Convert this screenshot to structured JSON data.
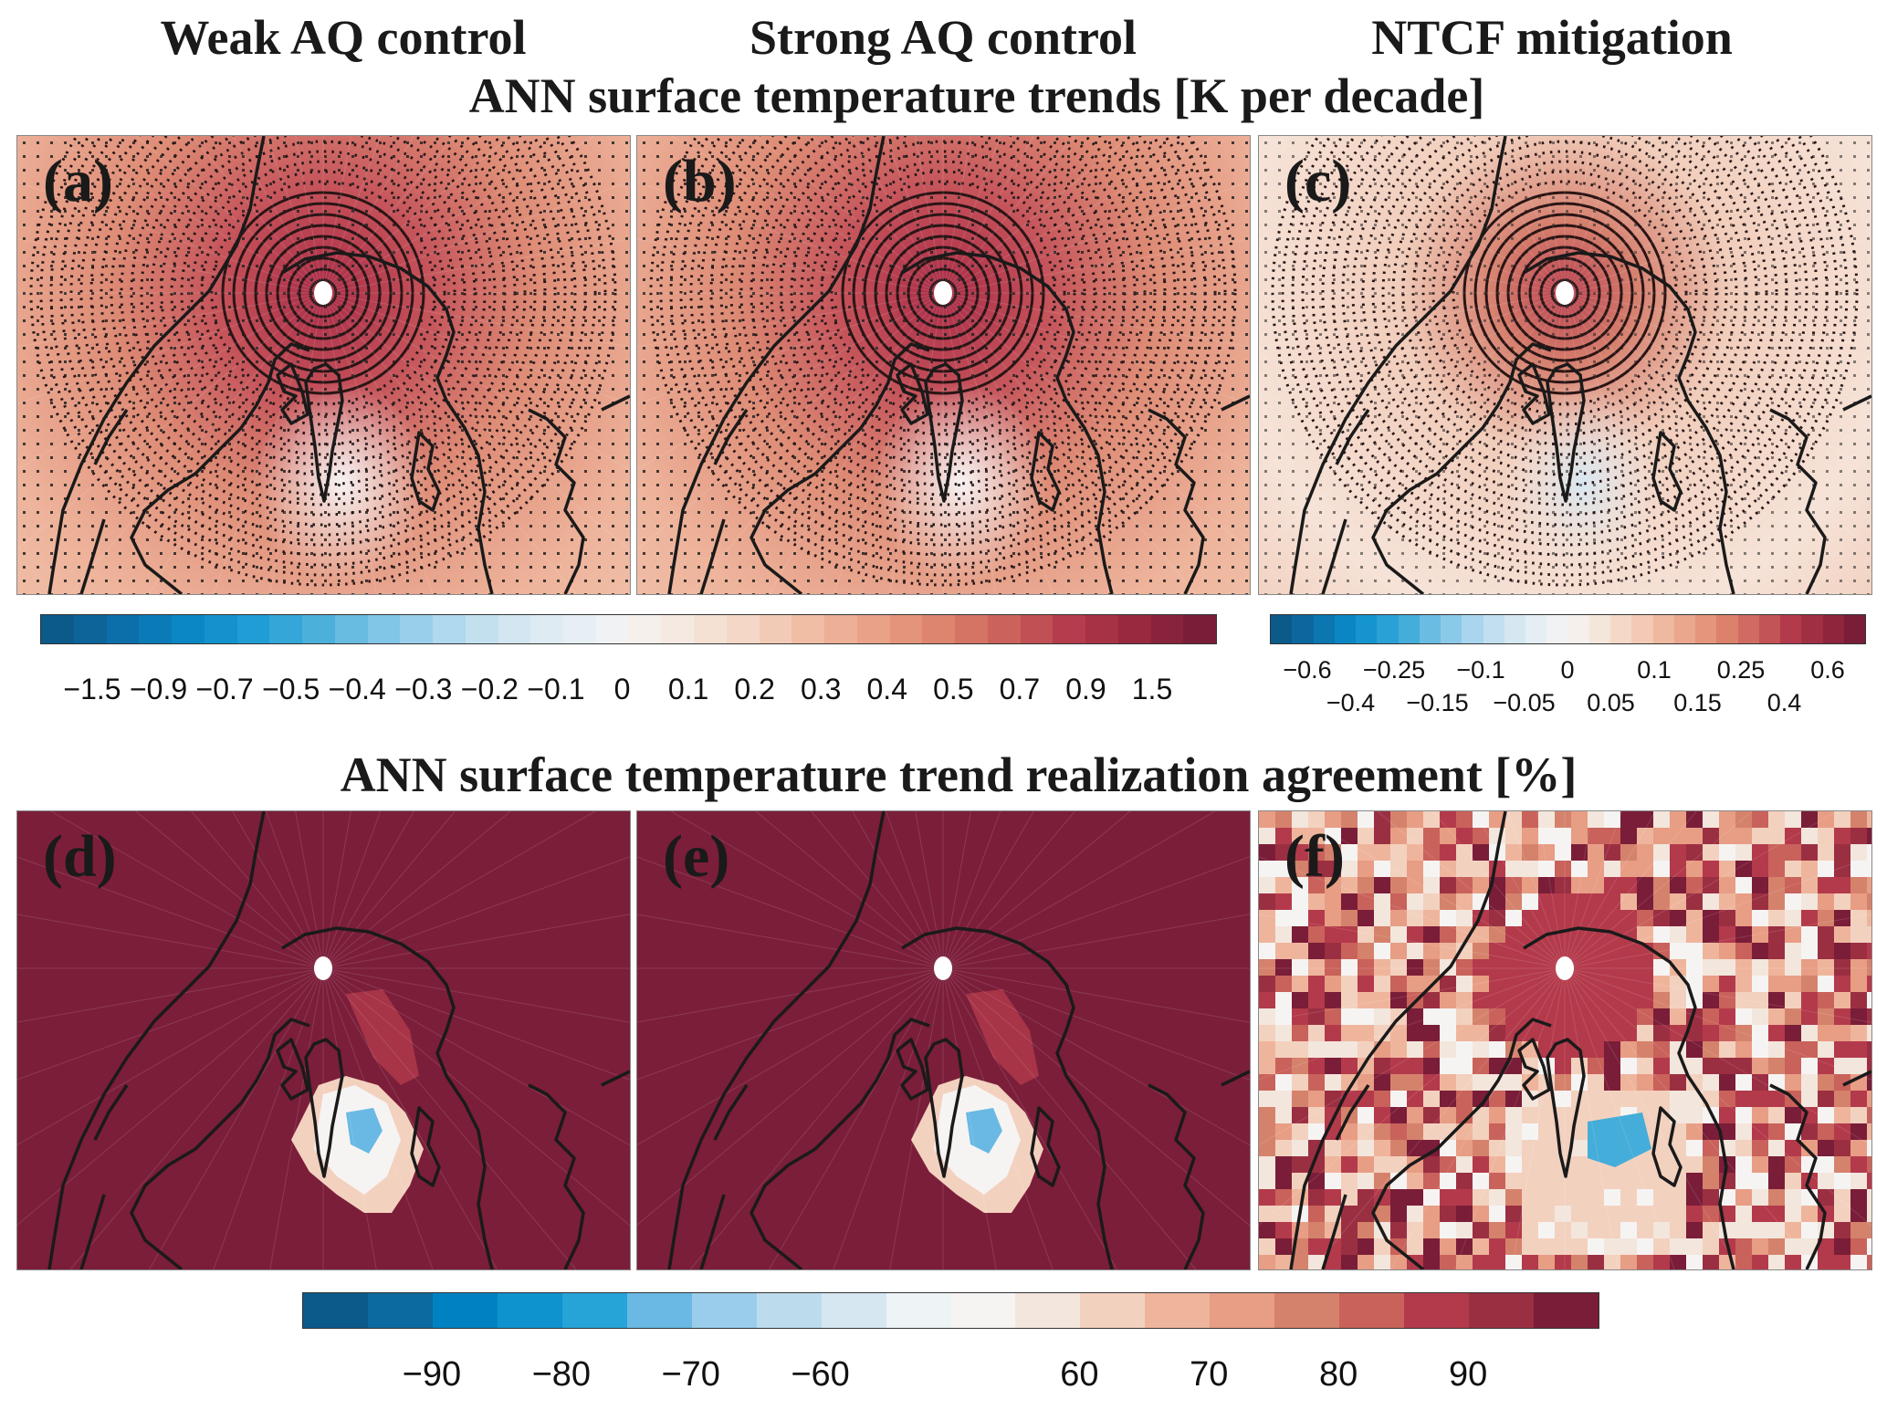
{
  "titles": {
    "col_a": "Weak AQ control",
    "col_b": "Strong AQ control",
    "col_c": "NTCF mitigation",
    "top_row": "ANN surface temperature trends [K per decade]",
    "bottom_row": "ANN surface temperature trend realization agreement [%]"
  },
  "panels": [
    {
      "label": "(a)",
      "kind": "trend",
      "strength": 1.0
    },
    {
      "label": "(b)",
      "kind": "trend",
      "strength": 1.1
    },
    {
      "label": "(c)",
      "kind": "trend",
      "strength": 0.6
    },
    {
      "label": "(d)",
      "kind": "agreement"
    },
    {
      "label": "(e)",
      "kind": "agreement"
    },
    {
      "label": "(f)",
      "kind": "agreement-mixed"
    }
  ],
  "colorbars": {
    "trend_ab": {
      "ticks": [
        "−1.5",
        "−0.9",
        "−0.7",
        "−0.5",
        "−0.4",
        "−0.3",
        "−0.2",
        "−0.1",
        "0",
        "0.1",
        "0.2",
        "0.3",
        "0.4",
        "0.5",
        "0.7",
        "0.9",
        "1.5"
      ],
      "units": "K per decade"
    },
    "trend_c": {
      "ticks": [
        "−0.6",
        "−0.4",
        "−0.25",
        "−0.15",
        "−0.1",
        "−0.05",
        "0",
        "0.05",
        "0.1",
        "0.15",
        "0.25",
        "0.4",
        "0.6"
      ],
      "units": "K per decade"
    },
    "agreement": {
      "ticks": [
        "−90",
        "−80",
        "−70",
        "−60",
        "60",
        "70",
        "80",
        "90"
      ],
      "tick_segment_boundaries": [
        2,
        4,
        6,
        8,
        12,
        14,
        16,
        18
      ],
      "units": "%"
    }
  },
  "palette": {
    "diverging": [
      "#0b5a8a",
      "#0d6ea8",
      "#0a86c4",
      "#1b9bd4",
      "#45add9",
      "#7cc3e6",
      "#a9d6ee",
      "#cfe4f0",
      "#e4eef4",
      "#f6f4f3",
      "#f5e6dc",
      "#f4d3c0",
      "#efb8a0",
      "#e89e84",
      "#dc826c",
      "#c9605b",
      "#b33a4b",
      "#98293f",
      "#7a1d38"
    ],
    "agreement": [
      "#0b5a8a",
      "#0d6aa0",
      "#0082c2",
      "#0f93cf",
      "#26a4d8",
      "#69b9e4",
      "#99cdeb",
      "#bcdcee",
      "#d6e7f1",
      "#eef3f6",
      "#f6f4f3",
      "#f3e6dc",
      "#f3d1bf",
      "#efb59c",
      "#e89d85",
      "#d5826c",
      "#c9625b",
      "#b33a4b",
      "#9b2f42",
      "#7a1d38"
    ]
  }
}
